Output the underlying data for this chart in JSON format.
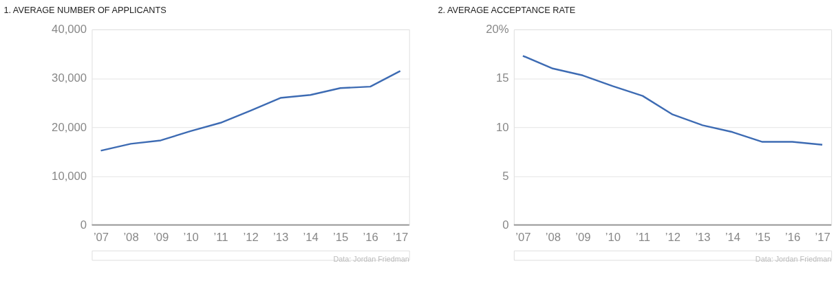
{
  "chart_data": [
    {
      "type": "line",
      "title": "1. AVERAGE NUMBER OF APPLICANTS",
      "categories": [
        "’07",
        "’08",
        "’09",
        "’10",
        "’11",
        "’12",
        "’13",
        "’14",
        "’15",
        "’16",
        "’17"
      ],
      "series": [
        {
          "color": "#3d6bb3",
          "values": [
            15200,
            16600,
            17300,
            19200,
            20900,
            23400,
            26000,
            26600,
            28000,
            28300,
            31500
          ]
        }
      ],
      "ylim": [
        0,
        40000
      ],
      "yticks": [
        {
          "value": 0,
          "label": "0"
        },
        {
          "value": 10000,
          "label": "10,000"
        },
        {
          "value": 20000,
          "label": "20,000"
        },
        {
          "value": 30000,
          "label": "30,000"
        },
        {
          "value": 40000,
          "label": "40,000"
        }
      ],
      "grid": "y",
      "marker": "none",
      "line_style": "solid",
      "annotations": [
        "Data: Jordan Friedman"
      ]
    },
    {
      "type": "line",
      "title": "2. AVERAGE ACCEPTANCE RATE",
      "categories": [
        "’07",
        "’08",
        "’09",
        "’10",
        "’11",
        "’12",
        "’13",
        "’14",
        "’15",
        "’16",
        "’17"
      ],
      "series": [
        {
          "color": "#3d6bb3",
          "values": [
            17.3,
            16.0,
            15.3,
            14.2,
            13.2,
            11.3,
            10.2,
            9.5,
            8.5,
            8.5,
            8.2
          ]
        }
      ],
      "ylim": [
        0,
        20
      ],
      "yticks": [
        0,
        5,
        10,
        15,
        {
          "value": 20,
          "label": "20%"
        }
      ],
      "grid": "y",
      "marker": "none",
      "line_style": "solid",
      "annotations": [
        "Data: Jordan Friedman"
      ]
    }
  ]
}
